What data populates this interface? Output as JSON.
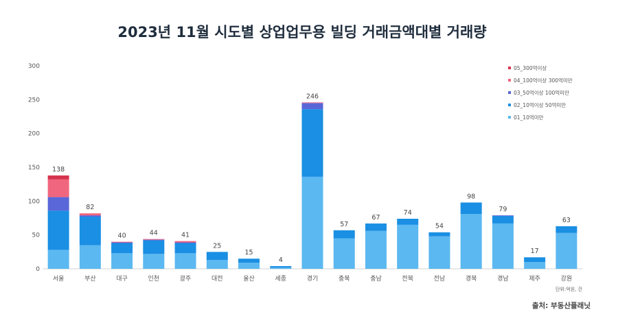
{
  "chart_data": {
    "type": "bar",
    "stacked": true,
    "title": "2023년 11월 시도별 상업업무용 빌딩 거래금액대별 거래량",
    "categories": [
      "서울",
      "부산",
      "대구",
      "인천",
      "광주",
      "대전",
      "울산",
      "세종",
      "경기",
      "충북",
      "충남",
      "전북",
      "전남",
      "경북",
      "경남",
      "제주",
      "강원"
    ],
    "totals": [
      138,
      82,
      40,
      44,
      41,
      25,
      15,
      4,
      246,
      57,
      67,
      74,
      54,
      98,
      79,
      17,
      63
    ],
    "series": [
      {
        "name": "01_10억미만",
        "color": "#5bb8f0",
        "values": [
          28,
          35,
          23,
          22,
          23,
          13,
          9,
          2,
          136,
          45,
          56,
          65,
          48,
          81,
          67,
          10,
          53
        ]
      },
      {
        "name": "02_10억이상 50억미만",
        "color": "#1a8fe3",
        "values": [
          58,
          42,
          15,
          20,
          15,
          12,
          6,
          2,
          100,
          12,
          11,
          9,
          6,
          17,
          11,
          7,
          10
        ]
      },
      {
        "name": "03_50억이상 100억미만",
        "color": "#5a67d8",
        "values": [
          20,
          2,
          1,
          1,
          1,
          0,
          0,
          0,
          9,
          0,
          0,
          0,
          0,
          0,
          1,
          0,
          0
        ]
      },
      {
        "name": "04_100억이상 300억미만",
        "color": "#f0667e",
        "values": [
          26,
          3,
          1,
          1,
          2,
          0,
          0,
          0,
          1,
          0,
          0,
          0,
          0,
          0,
          0,
          0,
          0
        ]
      },
      {
        "name": "05_300억이상",
        "color": "#d6344e",
        "values": [
          6,
          0,
          0,
          0,
          0,
          0,
          0,
          0,
          0,
          0,
          0,
          0,
          0,
          0,
          0,
          0,
          0
        ]
      }
    ],
    "legend_order": [
      "05_300억이상",
      "04_100억이상 300억미만",
      "03_50억이상 100억미만",
      "02_10억이상 50억미만",
      "01_10억미만"
    ],
    "ylim": [
      0,
      300
    ],
    "yticks": [
      0,
      50,
      100,
      150,
      200,
      250,
      300
    ],
    "legend_position": "top-right",
    "grid": false,
    "unit_note": "단위:억원, 건",
    "source": "출처: 부동산플래닛"
  }
}
